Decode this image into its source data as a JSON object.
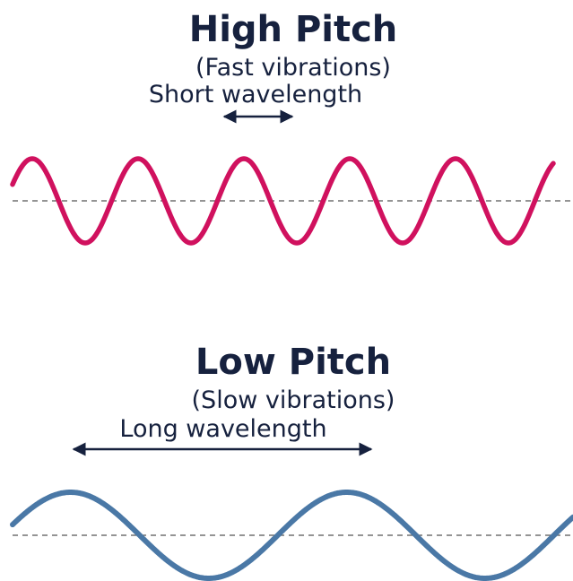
{
  "high": {
    "title": "High Pitch",
    "subtitle": "(Fast vibrations)",
    "wavelength_label": "Short wavelength",
    "color": "#d0115e",
    "cycles": 5
  },
  "low": {
    "title": "Low Pitch",
    "subtitle": "(Slow vibrations)",
    "wavelength_label": "Long wavelength",
    "color": "#4a78a6",
    "cycles": 2
  },
  "colors": {
    "text": "#16213e",
    "baseline": "#555555"
  }
}
